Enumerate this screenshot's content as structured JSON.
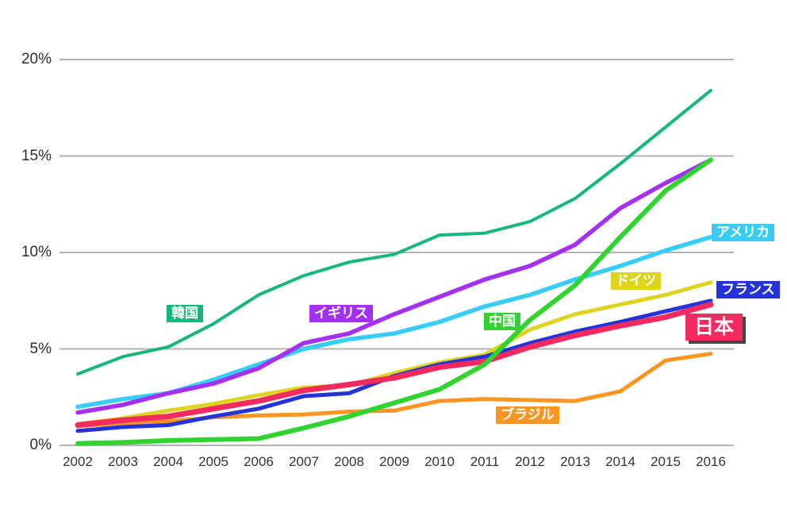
{
  "chart_data": {
    "type": "line",
    "title": "",
    "x": [
      2002,
      2003,
      2004,
      2005,
      2006,
      2007,
      2008,
      2009,
      2010,
      2011,
      2012,
      2013,
      2014,
      2015,
      2016
    ],
    "y_axis": {
      "range": [
        0,
        20
      ],
      "grid": true,
      "ticks": [
        {
          "value": 0,
          "label": "0%"
        },
        {
          "value": 5,
          "label": "5%"
        },
        {
          "value": 10,
          "label": "10%"
        },
        {
          "value": 15,
          "label": "15%"
        },
        {
          "value": 20,
          "label": "20%"
        }
      ]
    },
    "legend_position": "inline-labels-on-chart",
    "series": [
      {
        "id": "korea",
        "name": "韓国",
        "color": "#15b87a",
        "values": [
          3.7,
          4.6,
          5.1,
          6.3,
          7.8,
          8.8,
          9.5,
          9.9,
          10.9,
          11.0,
          11.6,
          12.8,
          14.6,
          16.5,
          18.4
        ]
      },
      {
        "id": "uk",
        "name": "イギリス",
        "color": "#a430f2",
        "values": [
          1.7,
          2.1,
          2.7,
          3.2,
          4.0,
          5.3,
          5.8,
          6.8,
          7.7,
          8.6,
          9.3,
          10.4,
          12.3,
          13.6,
          14.8
        ]
      },
      {
        "id": "usa",
        "name": "アメリカ",
        "color": "#38cdf9",
        "values": [
          2.0,
          2.4,
          2.7,
          3.4,
          4.2,
          5.0,
          5.5,
          5.8,
          6.4,
          7.2,
          7.8,
          8.6,
          9.3,
          10.1,
          10.8
        ]
      },
      {
        "id": "germany",
        "name": "ドイツ",
        "color": "#ded41f",
        "values": [
          1.1,
          1.4,
          1.8,
          2.15,
          2.6,
          3.0,
          3.1,
          3.75,
          4.3,
          4.7,
          6.0,
          6.8,
          7.3,
          7.8,
          8.45
        ]
      },
      {
        "id": "france",
        "name": "フランス",
        "color": "#2433d9",
        "values": [
          0.75,
          0.95,
          1.05,
          1.5,
          1.9,
          2.55,
          2.7,
          3.6,
          4.2,
          4.6,
          5.3,
          5.9,
          6.4,
          6.95,
          7.5
        ]
      },
      {
        "id": "japan",
        "name": "日本",
        "color": "#f22a5e",
        "values": [
          1.05,
          1.3,
          1.5,
          1.9,
          2.3,
          2.85,
          3.15,
          3.5,
          4.05,
          4.35,
          5.1,
          5.7,
          6.2,
          6.65,
          7.3
        ]
      },
      {
        "id": "china",
        "name": "中国",
        "color": "#30d330",
        "values": [
          0.1,
          0.15,
          0.25,
          0.3,
          0.35,
          0.9,
          1.5,
          2.2,
          2.9,
          4.2,
          6.5,
          8.3,
          10.8,
          13.2,
          14.8
        ]
      },
      {
        "id": "brazil",
        "name": "ブラジル",
        "color": "#fa9522",
        "values": [
          1.0,
          1.15,
          1.25,
          1.45,
          1.55,
          1.6,
          1.75,
          1.8,
          2.3,
          2.4,
          2.35,
          2.3,
          2.8,
          4.4,
          4.75
        ]
      }
    ]
  },
  "colors": {
    "grid": "#b3b3b3",
    "axis_text": "#333333",
    "tick_text": "#2d2d2d",
    "background": "#ffffff",
    "japan_label_shadow": "#464646"
  }
}
